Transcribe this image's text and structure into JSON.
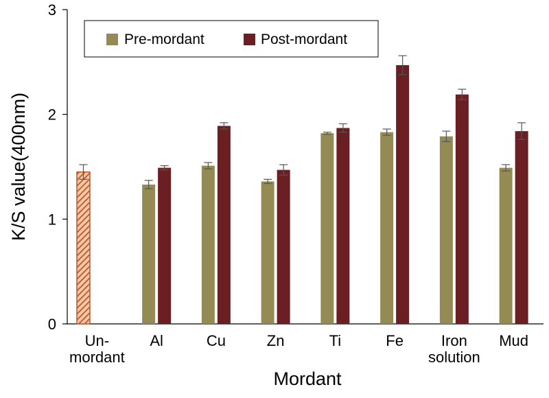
{
  "chart_data": {
    "type": "bar",
    "title": "",
    "xlabel": "Mordant",
    "ylabel": "K/S value(400nm)",
    "ylim": [
      0,
      3
    ],
    "yticks": [
      0,
      1,
      2,
      3
    ],
    "categories": [
      [
        "Un-",
        "mordant"
      ],
      [
        "Al"
      ],
      [
        "Cu"
      ],
      [
        "Zn"
      ],
      [
        "Ti"
      ],
      [
        "Fe"
      ],
      [
        "Iron",
        "solution"
      ],
      [
        "Mud"
      ]
    ],
    "series": [
      {
        "name": "Pre-mordant",
        "color": "#948a54",
        "values": [
          1.45,
          1.33,
          1.51,
          1.36,
          1.82,
          1.83,
          1.79,
          1.49
        ],
        "errors": [
          0.07,
          0.04,
          0.03,
          0.02,
          0.01,
          0.03,
          0.05,
          0.03
        ]
      },
      {
        "name": "Post-mordant",
        "color": "#6b1f22",
        "values": [
          null,
          1.49,
          1.89,
          1.47,
          1.87,
          2.47,
          2.19,
          1.84
        ],
        "errors": [
          null,
          0.02,
          0.03,
          0.05,
          0.04,
          0.09,
          0.05,
          0.08
        ]
      }
    ],
    "special_bars": [
      {
        "category_index": 0,
        "style": "hatched",
        "stroke": "#c0522a",
        "fill": "#e8a070"
      }
    ],
    "legend": {
      "position": "top-left",
      "entries": [
        "Pre-mordant",
        "Post-mordant"
      ]
    }
  }
}
